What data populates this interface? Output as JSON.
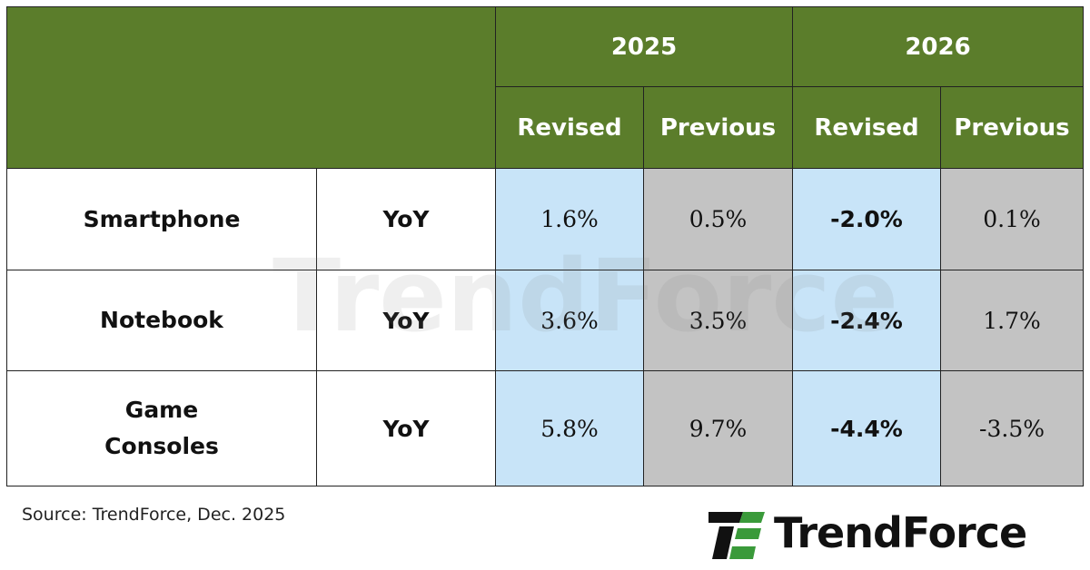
{
  "table": {
    "header": {
      "years": [
        "2025",
        "2026"
      ],
      "subheaders": [
        "Revised",
        "Previous",
        "Revised",
        "Previous"
      ]
    },
    "rows": [
      {
        "label": "Smartphone",
        "metric": "YoY",
        "cells": [
          "1.6%",
          "0.5%",
          "-2.0%",
          "0.1%"
        ]
      },
      {
        "label": "Notebook",
        "metric": "YoY",
        "cells": [
          "3.6%",
          "3.5%",
          "-2.4%",
          "1.7%"
        ]
      },
      {
        "label": "Game Consoles",
        "metric": "YoY",
        "cells": [
          "5.8%",
          "9.7%",
          "-4.4%",
          "-3.5%"
        ]
      }
    ]
  },
  "watermark": "TrendForce",
  "source": "Source: TrendForce, Dec. 2025",
  "logo": "TrendForce"
}
